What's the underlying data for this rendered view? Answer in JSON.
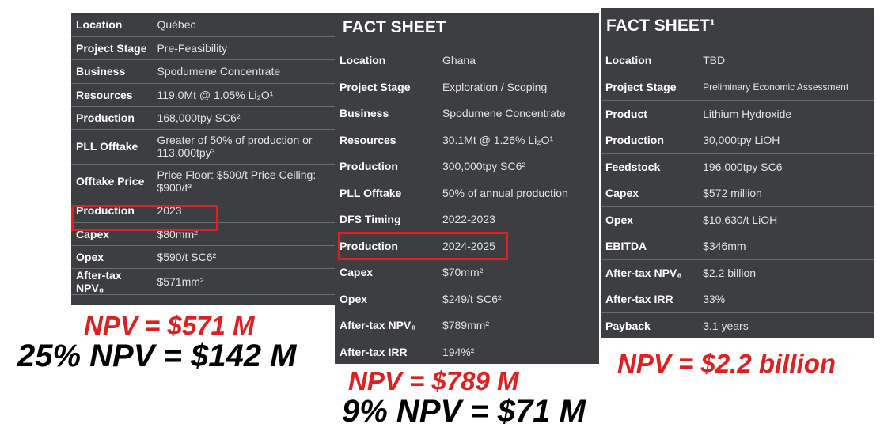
{
  "sheet1": {
    "rows": [
      {
        "k": "Location",
        "v": "Québec"
      },
      {
        "k": "Project Stage",
        "v": "Pre-Feasibility"
      },
      {
        "k": "Business",
        "v": "Spodumene Concentrate"
      },
      {
        "k": "Resources",
        "v": "119.0Mt @ 1.05% Li₂O¹"
      },
      {
        "k": "Production",
        "v": "168,000tpy SC6²"
      },
      {
        "k": "PLL Offtake",
        "v": "Greater of 50% of production or 113,000tpy³"
      },
      {
        "k": "Offtake Price",
        "v": "Price Floor: $500/t Price Ceiling: $900/t³"
      },
      {
        "k": "Production",
        "v": "2023"
      },
      {
        "k": "Capex",
        "v": "$80mm²"
      },
      {
        "k": "Opex",
        "v": "$590/t SC6²"
      },
      {
        "k": "After-tax NPV₈",
        "v": "$571mm²"
      }
    ]
  },
  "sheet2": {
    "title": "FACT SHEET",
    "rows": [
      {
        "k": "Location",
        "v": "Ghana"
      },
      {
        "k": "Project Stage",
        "v": "Exploration / Scoping"
      },
      {
        "k": "Business",
        "v": "Spodumene Concentrate"
      },
      {
        "k": "Resources",
        "v": "30.1Mt @ 1.26% Li₂O¹"
      },
      {
        "k": "Production",
        "v": "300,000tpy SC6²"
      },
      {
        "k": "PLL Offtake",
        "v": "50% of annual production"
      },
      {
        "k": "DFS Timing",
        "v": "2022-2023"
      },
      {
        "k": "Production",
        "v": "2024-2025"
      },
      {
        "k": "Capex",
        "v": "$70mm²"
      },
      {
        "k": "Opex",
        "v": "$249/t SC6²"
      },
      {
        "k": "After-tax NPV₈",
        "v": "$789mm²"
      },
      {
        "k": "After-tax IRR",
        "v": "194%²"
      }
    ]
  },
  "sheet3": {
    "title": "FACT SHEET¹",
    "rows": [
      {
        "k": "Location",
        "v": "TBD"
      },
      {
        "k": "Project Stage",
        "v": "Preliminary Economic Assessment"
      },
      {
        "k": "Product",
        "v": "Lithium Hydroxide"
      },
      {
        "k": "Production",
        "v": "30,000tpy LiOH"
      },
      {
        "k": "Feedstock",
        "v": "196,000tpy SC6"
      },
      {
        "k": "Capex",
        "v": "$572 million"
      },
      {
        "k": "Opex",
        "v": "$10,630/t LiOH"
      },
      {
        "k": "EBITDA",
        "v": "$346mm"
      },
      {
        "k": "After-tax NPV₈",
        "v": "$2.2 billion"
      },
      {
        "k": "After-tax IRR",
        "v": "33%"
      },
      {
        "k": "Payback",
        "v": "3.1 years"
      }
    ]
  },
  "notes": {
    "npv1": "NPV = $571 M",
    "pct1": "25% NPV = $142 M",
    "npv2": "NPV = $789 M",
    "pct2": "9% NPV = $71 M",
    "npv3": "NPV = $2.2 billion"
  },
  "colors": {
    "panel": "#3c3e41",
    "highlight": "#e02020"
  }
}
